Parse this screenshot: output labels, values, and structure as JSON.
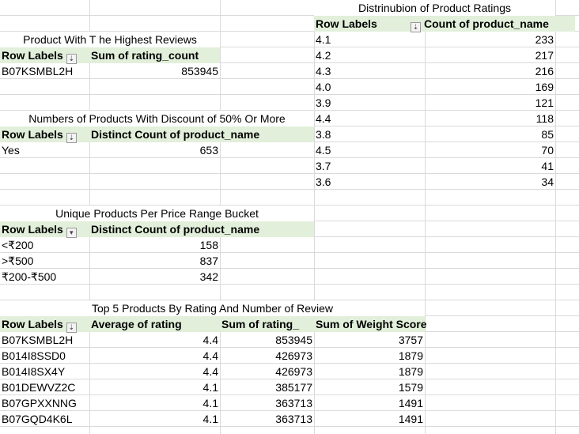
{
  "tables": {
    "highest_reviews": {
      "title": "Product With T he Highest Reviews",
      "row_label_header": "Row Labels",
      "value_header": "Sum of rating_count",
      "row": {
        "label": "B07KSMBL2H",
        "value": "853945"
      }
    },
    "discount": {
      "title": "Numbers of Products With Discount of 50% Or More",
      "row_label_header": "Row Labels",
      "value_header": "Distinct Count of product_name",
      "row": {
        "label": "Yes",
        "value": "653"
      }
    },
    "price_bucket": {
      "title": "Unique Products Per Price Range Bucket",
      "row_label_header": "Row Labels",
      "value_header": "Distinct Count of product_name",
      "rows": [
        {
          "label": "<₹200",
          "value": "158"
        },
        {
          "label": ">₹500",
          "value": "837"
        },
        {
          "label": "₹200-₹500",
          "value": "342"
        }
      ]
    },
    "top5": {
      "title": "Top 5 Products By Rating And Number of Review",
      "row_label_header": "Row Labels",
      "col1_header": "Average of rating",
      "col2_header": "Sum of rating_",
      "col3_header": "Sum of Weight Score",
      "rows": [
        {
          "label": "B07KSMBL2H",
          "avg": "4.4",
          "sum": "853945",
          "score": "3757"
        },
        {
          "label": "B014I8SSD0",
          "avg": "4.4",
          "sum": "426973",
          "score": "1879"
        },
        {
          "label": "B014I8SX4Y",
          "avg": "4.4",
          "sum": "426973",
          "score": "1879"
        },
        {
          "label": "B01DEWVZ2C",
          "avg": "4.1",
          "sum": "385177",
          "score": "1579"
        },
        {
          "label": "B07GPXXNNG",
          "avg": "4.1",
          "sum": "363713",
          "score": "1491"
        },
        {
          "label": "B07GQD4K6L",
          "avg": "4.1",
          "sum": "363713",
          "score": "1491"
        }
      ]
    },
    "distribution": {
      "title": "Distrinubion of Product Ratings",
      "row_label_header": "Row Labels",
      "value_header": "Count of product_name",
      "rows": [
        {
          "label": "4.1",
          "value": "233"
        },
        {
          "label": "4.2",
          "value": "217"
        },
        {
          "label": "4.3",
          "value": "216"
        },
        {
          "label": "4.0",
          "value": "169"
        },
        {
          "label": "3.9",
          "value": "121"
        },
        {
          "label": "4.4",
          "value": "118"
        },
        {
          "label": "3.8",
          "value": "85"
        },
        {
          "label": "4.5",
          "value": "70"
        },
        {
          "label": "3.7",
          "value": "41"
        },
        {
          "label": "3.6",
          "value": "34"
        }
      ]
    }
  },
  "icons": {
    "filter_sort": "filter-sort-icon",
    "dropdown": "dropdown-icon"
  },
  "colors": {
    "header_fill": "#e2efda",
    "gridline": "#dadada"
  }
}
